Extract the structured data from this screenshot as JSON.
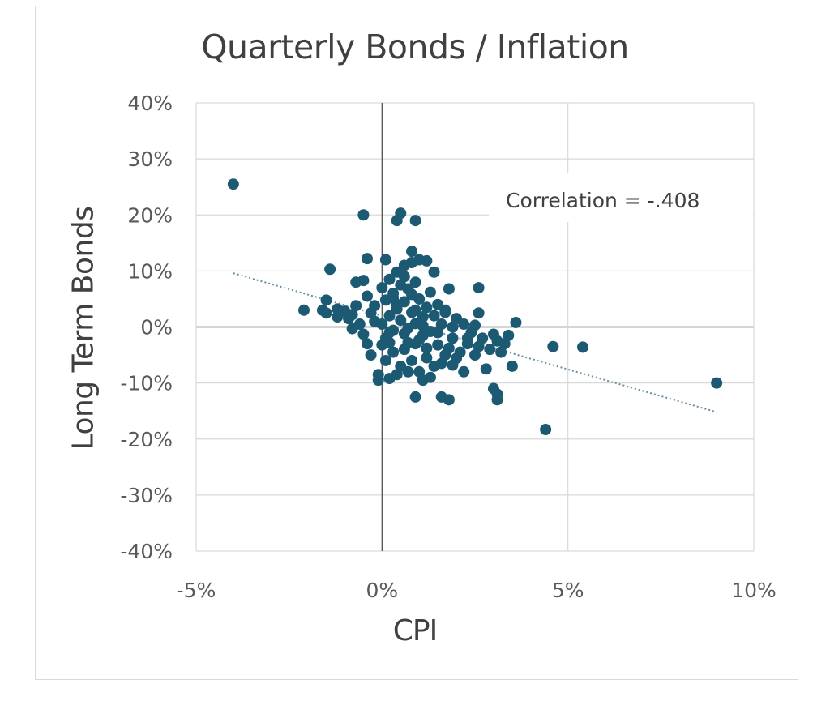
{
  "chart_data": {
    "type": "scatter",
    "title": "Quarterly Bonds / Inflation",
    "xlabel": "CPI",
    "ylabel": "Long Term Bonds",
    "xlim": [
      -5,
      10
    ],
    "ylim": [
      -40,
      40
    ],
    "x_ticks": [
      -5,
      0,
      5,
      10
    ],
    "y_ticks": [
      40,
      30,
      20,
      10,
      0,
      -10,
      -20,
      -30,
      -40
    ],
    "x_tick_labels": [
      "-5%",
      "0%",
      "5%",
      "10%"
    ],
    "y_tick_labels": [
      "40%",
      "30%",
      "20%",
      "10%",
      "0%",
      "-10%",
      "-20%",
      "-30%",
      "-40%"
    ],
    "grid": true,
    "marker_color": "#1c5a74",
    "trendline_color": "#6a8fa0",
    "annotation": "Correlation = -.408",
    "trendline": {
      "x": [
        -4.0,
        9.0
      ],
      "y": [
        9.6,
        -15.2
      ]
    },
    "points": [
      [
        -4.0,
        25.5
      ],
      [
        -0.5,
        20.0
      ],
      [
        0.4,
        19.0
      ],
      [
        0.5,
        20.3
      ],
      [
        0.9,
        19.0
      ],
      [
        -1.4,
        10.3
      ],
      [
        -0.4,
        12.2
      ],
      [
        0.1,
        12.0
      ],
      [
        0.8,
        13.5
      ],
      [
        1.0,
        12.0
      ],
      [
        1.4,
        9.8
      ],
      [
        -0.7,
        8.0
      ],
      [
        -0.5,
        8.3
      ],
      [
        2.6,
        7.0
      ],
      [
        1.8,
        6.8
      ],
      [
        0.6,
        11.0
      ],
      [
        -0.4,
        5.5
      ],
      [
        -2.1,
        3.0
      ],
      [
        -1.6,
        3.0
      ],
      [
        -1.5,
        4.8
      ],
      [
        -1.2,
        3.2
      ],
      [
        -1.0,
        2.8
      ],
      [
        -0.9,
        1.5
      ],
      [
        -0.8,
        2.2
      ],
      [
        -0.6,
        0.5
      ],
      [
        -0.5,
        -1.3
      ],
      [
        -0.4,
        -3.0
      ],
      [
        -1.5,
        2.5
      ],
      [
        -1.2,
        1.8
      ],
      [
        -0.7,
        3.8
      ],
      [
        -0.3,
        2.5
      ],
      [
        -0.2,
        1.0
      ],
      [
        3.6,
        0.8
      ],
      [
        3.4,
        -1.5
      ],
      [
        3.5,
        -7.0
      ],
      [
        3.1,
        -2.5
      ],
      [
        2.9,
        -4.0
      ],
      [
        2.6,
        2.5
      ],
      [
        2.2,
        0.5
      ],
      [
        2.0,
        1.5
      ],
      [
        2.3,
        -3.0
      ],
      [
        2.5,
        -5.0
      ],
      [
        2.8,
        -7.5
      ],
      [
        2.2,
        -8.0
      ],
      [
        3.0,
        -11.0
      ],
      [
        3.1,
        -12.0
      ],
      [
        3.1,
        -13.0
      ],
      [
        3.2,
        -4.5
      ],
      [
        1.6,
        -12.5
      ],
      [
        1.8,
        -13.0
      ],
      [
        0.9,
        -12.5
      ],
      [
        1.3,
        -9.0
      ],
      [
        1.0,
        -8.0
      ],
      [
        0.8,
        -6.0
      ],
      [
        -0.1,
        -8.5
      ],
      [
        -0.1,
        -9.5
      ],
      [
        0.2,
        -9.2
      ],
      [
        0.4,
        -8.5
      ],
      [
        0.1,
        -6.0
      ],
      [
        4.6,
        -3.5
      ],
      [
        5.4,
        -3.6
      ],
      [
        9.0,
        -10.0
      ],
      [
        4.4,
        -18.3
      ],
      [
        1.7,
        -5.0
      ],
      [
        1.5,
        -3.2
      ],
      [
        1.9,
        -2.0
      ],
      [
        2.1,
        -4.5
      ],
      [
        1.2,
        -5.5
      ],
      [
        1.6,
        -6.5
      ],
      [
        1.9,
        -6.8
      ],
      [
        0.9,
        -3.0
      ],
      [
        1.1,
        -1.5
      ],
      [
        0.7,
        -2.8
      ],
      [
        0.3,
        -4.5
      ],
      [
        0.1,
        -2.0
      ],
      [
        0.0,
        0.5
      ],
      [
        0.2,
        2.0
      ],
      [
        0.4,
        3.2
      ],
      [
        0.6,
        4.5
      ],
      [
        0.3,
        6.0
      ],
      [
        0.5,
        7.5
      ],
      [
        0.7,
        6.8
      ],
      [
        0.9,
        8.0
      ],
      [
        0.2,
        8.5
      ],
      [
        0.0,
        7.0
      ],
      [
        0.6,
        9.0
      ],
      [
        1.0,
        5.0
      ],
      [
        1.2,
        3.5
      ],
      [
        1.4,
        2.0
      ],
      [
        1.6,
        0.5
      ],
      [
        1.3,
        -0.8
      ],
      [
        0.9,
        0.6
      ],
      [
        0.5,
        1.2
      ],
      [
        0.3,
        -0.6
      ],
      [
        0.7,
        -0.2
      ],
      [
        1.1,
        1.8
      ],
      [
        0.8,
        2.6
      ],
      [
        0.4,
        4.0
      ],
      [
        0.6,
        -1.2
      ],
      [
        1.0,
        -2.3
      ],
      [
        1.5,
        4.0
      ],
      [
        1.7,
        2.6
      ],
      [
        2.4,
        -1.0
      ],
      [
        2.7,
        -2.0
      ],
      [
        3.0,
        -1.3
      ],
      [
        1.8,
        -3.8
      ],
      [
        2.0,
        -5.6
      ],
      [
        1.4,
        -7.0
      ],
      [
        1.1,
        -9.5
      ],
      [
        0.6,
        -4.0
      ],
      [
        0.2,
        -1.0
      ],
      [
        -0.2,
        3.8
      ],
      [
        0.1,
        4.8
      ],
      [
        0.0,
        -3.2
      ],
      [
        1.3,
        6.2
      ],
      [
        1.7,
        3.0
      ],
      [
        2.3,
        -2.0
      ],
      [
        0.4,
        9.8
      ],
      [
        0.8,
        11.5
      ],
      [
        1.2,
        11.8
      ],
      [
        -0.8,
        -0.3
      ],
      [
        -0.3,
        -5.0
      ],
      [
        0.5,
        -7.0
      ],
      [
        0.7,
        -8.0
      ],
      [
        1.2,
        -3.8
      ],
      [
        2.6,
        -3.5
      ],
      [
        3.3,
        -3.0
      ],
      [
        1.9,
        0.0
      ],
      [
        2.5,
        0.3
      ],
      [
        0.3,
        5.2
      ],
      [
        0.9,
        3.0
      ],
      [
        1.1,
        0.2
      ],
      [
        0.2,
        -2.8
      ],
      [
        1.5,
        -1.0
      ],
      [
        0.8,
        5.8
      ]
    ]
  }
}
